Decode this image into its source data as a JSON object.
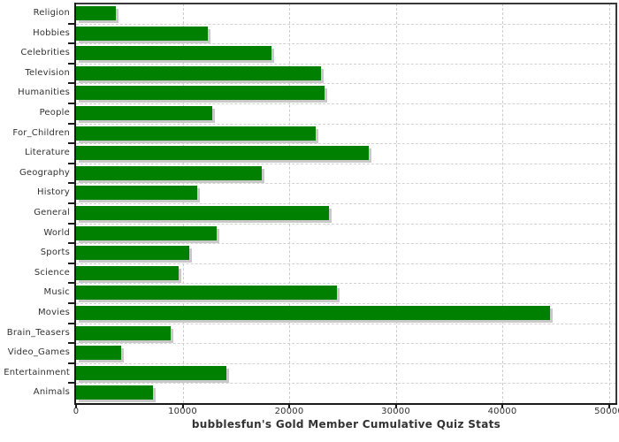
{
  "chart_data": {
    "type": "bar",
    "orientation": "horizontal",
    "title": "bubblesfun's Gold Member Cumulative Quiz Stats",
    "xlabel": "",
    "ylabel": "",
    "categories": [
      "Religion",
      "Hobbies",
      "Celebrities",
      "Television",
      "Humanities",
      "People",
      "For_Children",
      "Literature",
      "Geography",
      "History",
      "General",
      "World",
      "Sports",
      "Science",
      "Music",
      "Movies",
      "Brain_Teasers",
      "Video_Games",
      "Entertainment",
      "Animals"
    ],
    "values": [
      3700,
      12400,
      18300,
      23000,
      23300,
      12800,
      22500,
      27500,
      17400,
      11400,
      23700,
      13200,
      10600,
      9600,
      24500,
      44500,
      8900,
      4200,
      14100,
      7200
    ],
    "xlim": [
      0,
      50000
    ],
    "x_ticks": [
      0,
      10000,
      20000,
      30000,
      40000,
      50000
    ],
    "x_tick_labels": [
      "0",
      "10000",
      "20000",
      "30000",
      "40000",
      "50000"
    ],
    "grid": true,
    "legend": false,
    "bar_color": "#008000",
    "shadow_color": "#c9c9c9",
    "grid_color": "#cccccc",
    "axis_color": "#1a1a1a",
    "text_color": "#333333",
    "background_color": "#ffffff"
  }
}
